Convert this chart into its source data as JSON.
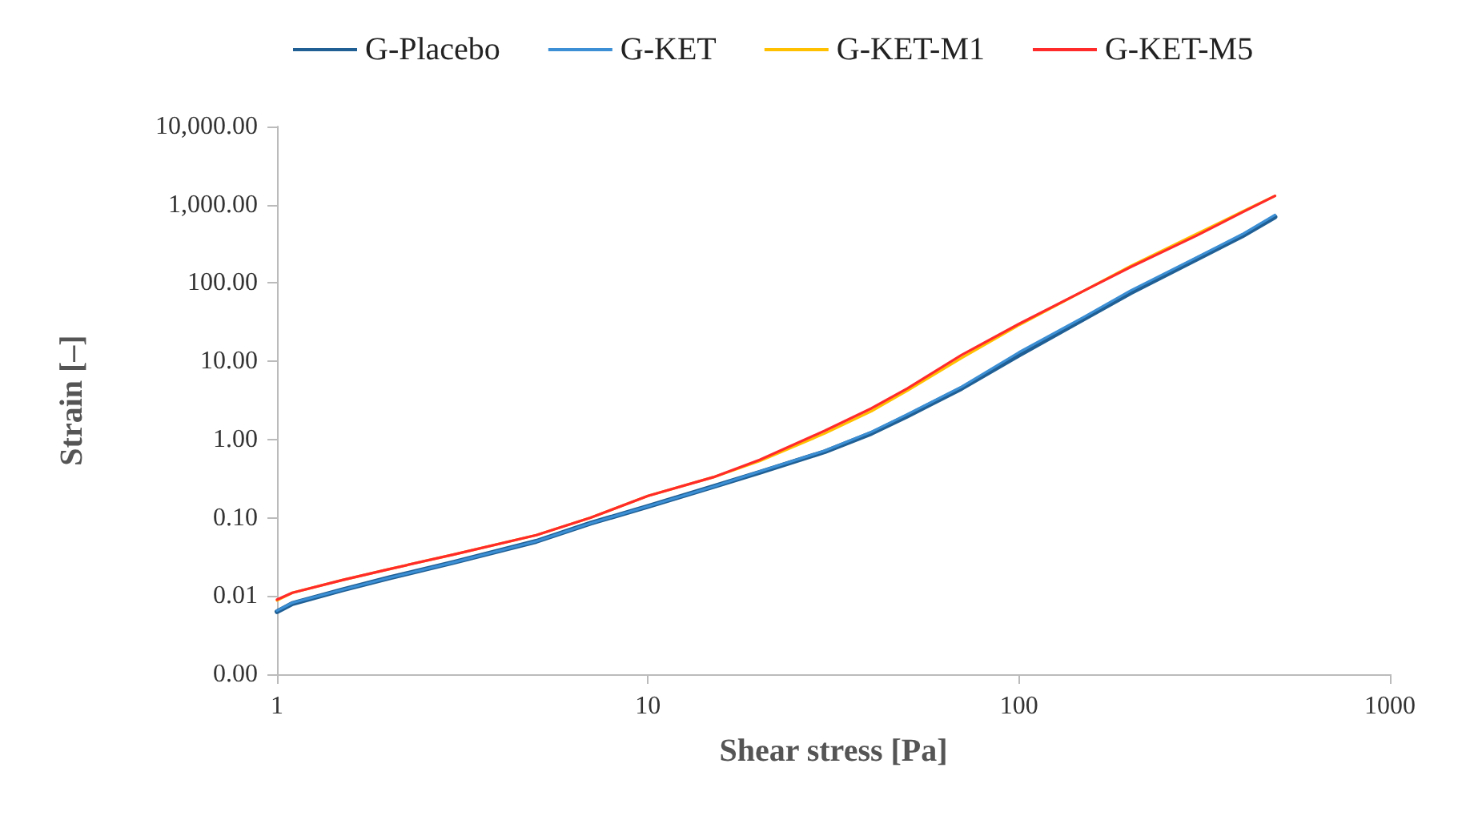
{
  "chart_data": {
    "type": "line",
    "xlabel": "Shear stress [Pa]",
    "ylabel": "Strain [–]",
    "log": "xy",
    "grid": false,
    "legend": "top",
    "marker": "none",
    "line_style": "solid",
    "x": [
      1,
      1.1,
      1.5,
      2,
      3,
      5,
      7,
      10,
      15,
      20,
      30,
      40,
      50,
      70,
      100,
      150,
      200,
      300,
      400,
      490
    ],
    "xlim": [
      1,
      1000
    ],
    "xticks": [
      1,
      10,
      100,
      1000
    ],
    "ylim": [
      0.001,
      10000
    ],
    "yticks": [
      {
        "value": 0.001,
        "label": "0.00"
      },
      {
        "value": 0.01,
        "label": "0.01"
      },
      {
        "value": 0.1,
        "label": "0.10"
      },
      {
        "value": 1,
        "label": "1.00"
      },
      {
        "value": 10,
        "label": "10.00"
      },
      {
        "value": 100,
        "label": "100.00"
      },
      {
        "value": 1000,
        "label": "1,000.00"
      },
      {
        "value": 10000,
        "label": "10,000.00"
      }
    ],
    "series": [
      {
        "name": "G-Placebo",
        "color": "#1f5f94",
        "values": [
          0.0063,
          0.008,
          0.012,
          0.017,
          0.027,
          0.05,
          0.085,
          0.14,
          0.25,
          0.38,
          0.7,
          1.2,
          2,
          4.5,
          12,
          35,
          75,
          200,
          400,
          700
        ]
      },
      {
        "name": "G-KET",
        "color": "#3c8fd4",
        "values": [
          0.0065,
          0.0082,
          0.012,
          0.017,
          0.027,
          0.05,
          0.085,
          0.14,
          0.25,
          0.39,
          0.72,
          1.25,
          2.1,
          4.7,
          13,
          37,
          80,
          210,
          420,
          740
        ]
      },
      {
        "name": "G-KET-M1",
        "color": "#ffc000",
        "values": [
          0.0088,
          0.011,
          0.016,
          0.022,
          0.034,
          0.06,
          0.1,
          0.19,
          0.33,
          0.53,
          1.2,
          2.3,
          4.2,
          11,
          29,
          80,
          165,
          420,
          820,
          1300
        ]
      },
      {
        "name": "G-KET-M5",
        "color": "#ff2a2a",
        "values": [
          0.009,
          0.011,
          0.016,
          0.022,
          0.034,
          0.06,
          0.1,
          0.19,
          0.33,
          0.55,
          1.3,
          2.5,
          4.5,
          12,
          30,
          80,
          160,
          400,
          800,
          1300
        ]
      }
    ]
  }
}
